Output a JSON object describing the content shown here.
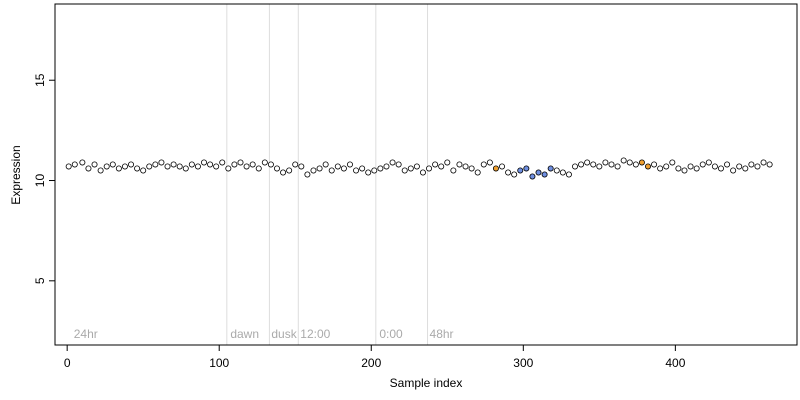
{
  "chart_data": {
    "type": "scatter",
    "title": "",
    "xlabel": "Sample index",
    "ylabel": "Expression",
    "xlim": [
      -8,
      480
    ],
    "ylim": [
      1.8,
      18.8
    ],
    "x_ticks": [
      0,
      100,
      200,
      300,
      400
    ],
    "y_ticks": [
      5,
      10,
      15
    ],
    "grid": false,
    "colors": {
      "point_fill": "#ffffff",
      "point_stroke": "#000000",
      "highlight_a": "#f0a030",
      "highlight_b": "#6f8fe0",
      "annotation": "#aaaaaa",
      "vline": "#dddddd"
    },
    "annotations": [
      {
        "x": 3,
        "label": "24hr"
      },
      {
        "x": 106,
        "label": "dawn"
      },
      {
        "x": 133,
        "label": "dusk"
      },
      {
        "x": 152,
        "label": "12:00"
      },
      {
        "x": 204,
        "label": "0:00"
      },
      {
        "x": 237,
        "label": "48hr"
      }
    ],
    "vlines": [
      105,
      133,
      152,
      203,
      237
    ],
    "series": [
      {
        "name": "",
        "x": [
          1,
          5,
          10,
          14,
          18,
          22,
          26,
          30,
          34,
          38,
          42,
          46,
          50,
          54,
          58,
          62,
          66,
          70,
          74,
          78,
          82,
          86,
          90,
          94,
          98,
          102,
          106,
          110,
          114,
          118,
          122,
          126,
          130,
          134,
          138,
          142,
          146,
          150,
          154,
          158,
          162,
          166,
          170,
          174,
          178,
          182,
          186,
          190,
          194,
          198,
          202,
          206,
          210,
          214,
          218,
          222,
          226,
          230,
          234,
          238,
          242,
          246,
          250,
          254,
          258,
          262,
          266,
          270,
          274,
          278,
          282,
          286,
          290,
          294,
          298,
          302,
          306,
          310,
          314,
          318,
          322,
          326,
          330,
          334,
          338,
          342,
          346,
          350,
          354,
          358,
          362,
          366,
          370,
          374,
          378,
          382,
          386,
          390,
          394,
          398,
          402,
          406,
          410,
          414,
          418,
          422,
          426,
          430,
          434,
          438,
          442,
          446,
          450,
          454,
          458,
          462
        ],
        "y": [
          10.7,
          10.8,
          10.9,
          10.6,
          10.8,
          10.5,
          10.7,
          10.8,
          10.6,
          10.7,
          10.8,
          10.6,
          10.5,
          10.7,
          10.8,
          10.9,
          10.7,
          10.8,
          10.7,
          10.6,
          10.8,
          10.7,
          10.9,
          10.8,
          10.7,
          10.9,
          10.6,
          10.8,
          10.9,
          10.7,
          10.8,
          10.6,
          10.9,
          10.8,
          10.6,
          10.4,
          10.5,
          10.8,
          10.7,
          10.3,
          10.5,
          10.6,
          10.8,
          10.5,
          10.7,
          10.6,
          10.8,
          10.5,
          10.6,
          10.4,
          10.5,
          10.6,
          10.7,
          10.9,
          10.8,
          10.5,
          10.6,
          10.7,
          10.4,
          10.6,
          10.8,
          10.7,
          10.9,
          10.5,
          10.8,
          10.7,
          10.6,
          10.4,
          10.8,
          10.9,
          10.6,
          10.7,
          10.4,
          10.3,
          10.5,
          10.6,
          10.2,
          10.4,
          10.3,
          10.6,
          10.5,
          10.4,
          10.3,
          10.7,
          10.8,
          10.9,
          10.8,
          10.7,
          10.9,
          10.8,
          10.7,
          11.0,
          10.9,
          10.8,
          10.9,
          10.7,
          10.8,
          10.6,
          10.7,
          10.9,
          10.6,
          10.5,
          10.7,
          10.6,
          10.8,
          10.9,
          10.7,
          10.6,
          10.8,
          10.5,
          10.7,
          10.6,
          10.8,
          10.7,
          10.9,
          10.8
        ]
      }
    ]
  }
}
